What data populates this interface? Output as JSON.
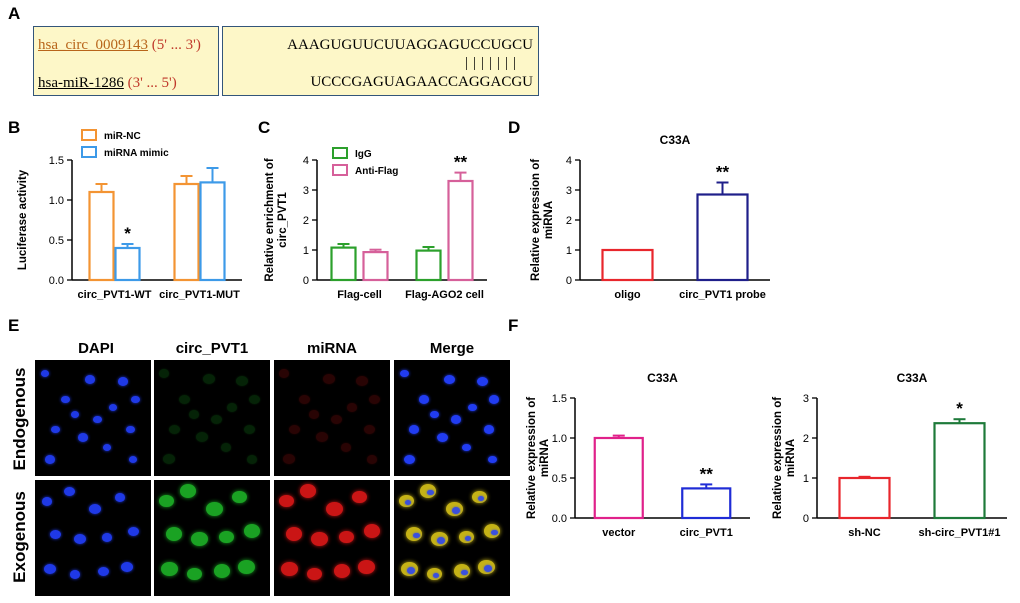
{
  "panels": {
    "A": "A",
    "B": "B",
    "C": "C",
    "D": "D",
    "E": "E",
    "F": "F"
  },
  "panel_a": {
    "circ_name": "hsa_circ_0009143",
    "circ_dir": "(5' ... 3')",
    "mir_name": "hsa-miR-1286",
    "mir_dir": "(3' ... 5')",
    "seq_top": "AAAGUGUUCUUAGGAGUCCUGCU",
    "pairs": "|||||||",
    "seq_bottom": "UCCCGAGUAGAACCAGGACGU"
  },
  "panel_e": {
    "col_titles": [
      "DAPI",
      "circ_PVT1",
      "miRNA",
      "Merge"
    ],
    "row_labels": [
      "Endogenous",
      "Exogenous"
    ],
    "colors": {
      "dapi": "#2340ff",
      "circ": "#1fbf2a",
      "mirna": "#e01818",
      "merge": "#e8d21a"
    }
  },
  "chart_data": [
    {
      "id": "B",
      "type": "bar",
      "categories": [
        "circ_PVT1-WT",
        "circ_PVT1-MUT"
      ],
      "series": [
        {
          "name": "miR-NC",
          "color": "#f39433",
          "values": [
            1.1,
            1.2
          ],
          "errors": [
            0.1,
            0.1
          ]
        },
        {
          "name": "miRNA mimic",
          "color": "#3d9ae8",
          "values": [
            0.4,
            1.22
          ],
          "errors": [
            0.05,
            0.18
          ]
        }
      ],
      "ylabel": "Luciferase activity",
      "ylim": [
        0,
        1.5
      ],
      "yticks": [
        0,
        0.5,
        1.0,
        1.5
      ],
      "tick_labels": [
        "0.0",
        "0.5",
        "1.0",
        "1.5"
      ],
      "annotations": [
        {
          "text": "*",
          "category": 0,
          "series": 1
        }
      ],
      "legend": "top-left"
    },
    {
      "id": "C",
      "type": "bar",
      "categories": [
        "Flag-cell",
        "Flag-AGO2 cell"
      ],
      "series": [
        {
          "name": "IgG",
          "color": "#2ca02c",
          "values": [
            1.08,
            0.98
          ],
          "errors": [
            0.12,
            0.12
          ]
        },
        {
          "name": "Anti-Flag",
          "color": "#d6609a",
          "values": [
            0.93,
            3.3
          ],
          "errors": [
            0.08,
            0.28
          ]
        }
      ],
      "ylabel": "Relative enrichment of circ_PVT1",
      "ylim": [
        0,
        4
      ],
      "yticks": [
        0,
        1,
        2,
        3,
        4
      ],
      "tick_labels": [
        "0",
        "1",
        "2",
        "3",
        "4"
      ],
      "annotations": [
        {
          "text": "**",
          "category": 1,
          "series": 1
        }
      ],
      "legend": "top-left"
    },
    {
      "id": "D",
      "type": "bar",
      "title": "C33A",
      "categories": [
        "oligo",
        "circ_PVT1 probe"
      ],
      "series": [
        {
          "colors": [
            "#e8262c",
            "#1f1f8a"
          ],
          "values": [
            1.0,
            2.85
          ],
          "errors": [
            0,
            0.4
          ]
        }
      ],
      "ylabel": "Relative expression of miRNA",
      "ylim": [
        0,
        4
      ],
      "yticks": [
        0,
        1,
        2,
        3,
        4
      ],
      "tick_labels": [
        "0",
        "1",
        "2",
        "3",
        "4"
      ],
      "annotations": [
        {
          "text": "**",
          "category": 1,
          "series": 0
        }
      ]
    },
    {
      "id": "F1",
      "type": "bar",
      "title": "C33A",
      "categories": [
        "vector",
        "circ_PVT1"
      ],
      "series": [
        {
          "colors": [
            "#e0218a",
            "#1f2cd6"
          ],
          "values": [
            1.0,
            0.37
          ],
          "errors": [
            0.03,
            0.05
          ]
        }
      ],
      "ylabel": "Relative expression of miRNA",
      "ylim": [
        0,
        1.5
      ],
      "yticks": [
        0,
        0.5,
        1.0,
        1.5
      ],
      "tick_labels": [
        "0.0",
        "0.5",
        "1.0",
        "1.5"
      ],
      "annotations": [
        {
          "text": "**",
          "category": 1,
          "series": 0
        }
      ]
    },
    {
      "id": "F2",
      "type": "bar",
      "title": "C33A",
      "categories": [
        "sh-NC",
        "sh-circ_PVT1#1"
      ],
      "series": [
        {
          "colors": [
            "#e8262c",
            "#1e7a3a"
          ],
          "values": [
            1.0,
            2.37
          ],
          "errors": [
            0.03,
            0.1
          ]
        }
      ],
      "ylabel": "Relative expression of miRNA",
      "ylim": [
        0,
        3
      ],
      "yticks": [
        0,
        1,
        2,
        3
      ],
      "tick_labels": [
        "0",
        "1",
        "2",
        "3"
      ],
      "annotations": [
        {
          "text": "*",
          "category": 1,
          "series": 0
        }
      ]
    }
  ]
}
